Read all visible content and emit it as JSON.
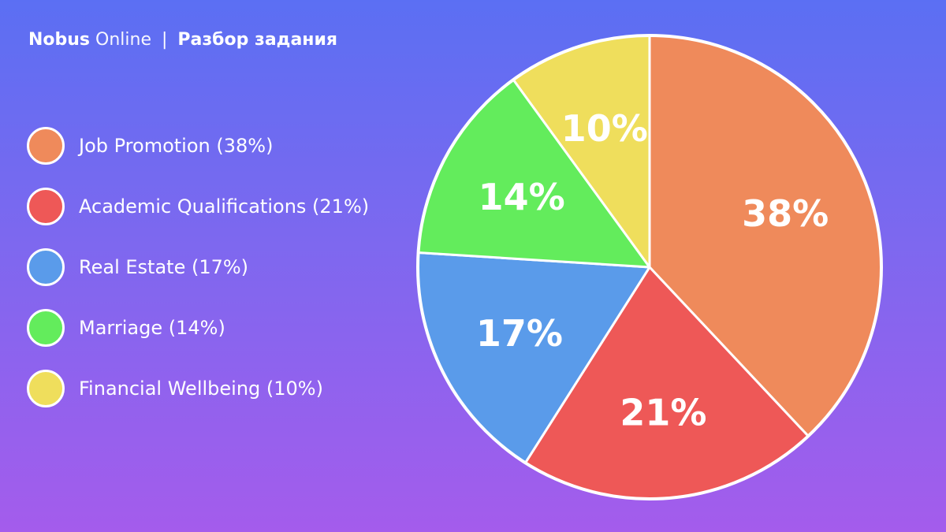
{
  "header": {
    "brand_bold": "Nobus",
    "brand_light": "Online",
    "separator": "|",
    "subtitle": "Разбор задания"
  },
  "chart_data": {
    "type": "pie",
    "title": "",
    "legend_position": "left",
    "slices": [
      {
        "label": "Job Promotion",
        "legend": "Job Promotion (38%)",
        "value": 38,
        "display": "38%",
        "color": "#ef8a5b"
      },
      {
        "label": "Academic Qualifications",
        "legend": "Academic Qualifications (21%)",
        "value": 21,
        "display": "21%",
        "color": "#ee5857"
      },
      {
        "label": "Real Estate",
        "legend": "Real Estate (17%)",
        "value": 17,
        "display": "17%",
        "color": "#5a9bea"
      },
      {
        "label": "Marriage",
        "legend": "Marriage (14%)",
        "value": 14,
        "display": "14%",
        "color": "#63ec5c"
      },
      {
        "label": "Financial Wellbeing",
        "legend": "Financial Wellbeing (10%)",
        "value": 10,
        "display": "10%",
        "color": "#efde5c"
      }
    ]
  }
}
